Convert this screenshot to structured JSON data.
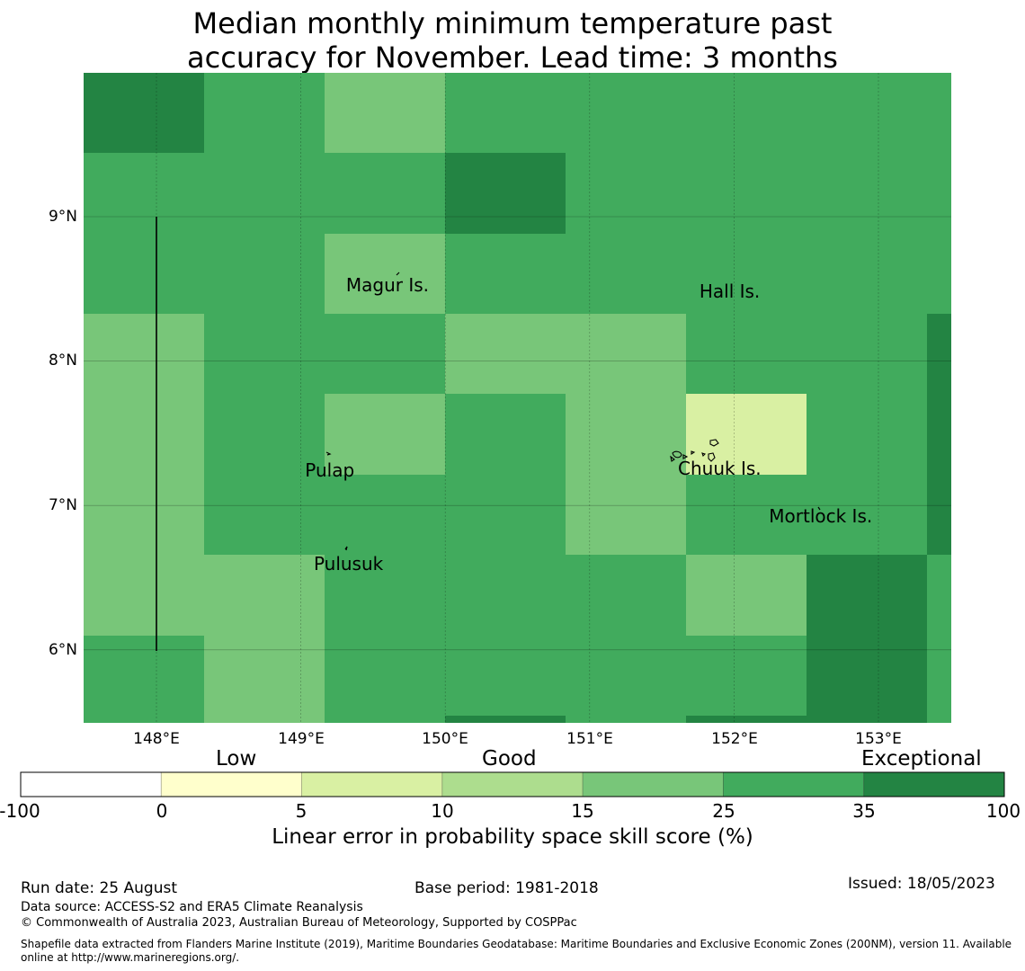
{
  "title_line1": "Median monthly minimum temperature past",
  "title_line2": "accuracy for November. Lead time: 3 months",
  "map": {
    "lon_range": [
      147.5,
      153.5
    ],
    "lat_range": [
      5.5,
      10.0
    ],
    "x_ticks": [
      "148°E",
      "149°E",
      "150°E",
      "151°E",
      "152°E",
      "153°E"
    ],
    "y_ticks": [
      "9°N",
      "8°N",
      "7°N",
      "6°N"
    ],
    "colors": {
      "c5": "#d9f0a3",
      "c15": "#78c679",
      "c25": "#41ab5d",
      "c35": "#238443"
    },
    "grid_rows": [
      [
        "c35",
        "c25",
        "c15",
        "c25",
        "c25",
        "c25",
        "c25",
        "c25"
      ],
      [
        "c25",
        "c25",
        "c25",
        "c35",
        "c25",
        "c25",
        "c25",
        "c25"
      ],
      [
        "c25",
        "c25",
        "c15",
        "c25",
        "c25",
        "c25",
        "c25",
        "c25"
      ],
      [
        "c15",
        "c25",
        "c25",
        "c15",
        "c15",
        "c25",
        "c25",
        "c35"
      ],
      [
        "c15",
        "c25",
        "c15",
        "c25",
        "c15",
        "c5",
        "c25",
        "c35"
      ],
      [
        "c15",
        "c25",
        "c25",
        "c25",
        "c15",
        "c25",
        "c25",
        "c35"
      ],
      [
        "c15",
        "c15",
        "c25",
        "c25",
        "c25",
        "c15",
        "c35",
        "c25"
      ],
      [
        "c25",
        "c15",
        "c25",
        "c25",
        "c25",
        "c25",
        "c35",
        "c25"
      ]
    ],
    "places": [
      {
        "name": "Magur Is.",
        "lon": 149.6,
        "lat": 8.52
      },
      {
        "name": "Hall Is.",
        "lon": 151.97,
        "lat": 8.48
      },
      {
        "name": "Pulap",
        "lon": 149.2,
        "lat": 7.24
      },
      {
        "name": "Chuuk Is.",
        "lon": 151.9,
        "lat": 7.25
      },
      {
        "name": "Mortlock Is.",
        "lon": 152.6,
        "lat": 6.92
      },
      {
        "name": "Pulusuk",
        "lon": 149.33,
        "lat": 6.59
      }
    ]
  },
  "legend": {
    "categories": [
      "Low",
      "Good",
      "Exceptional"
    ],
    "ticks": [
      "-100",
      "0",
      "5",
      "10",
      "15",
      "25",
      "35",
      "100"
    ],
    "colors": [
      "#ffffff",
      "#ffffcc",
      "#d9f0a3",
      "#addd8e",
      "#78c679",
      "#41ab5d",
      "#238443"
    ],
    "title": "Linear error in probability space skill score (%)"
  },
  "footer": {
    "run_date": "Run date: 25 August",
    "base_period": "Base period: 1981-2018",
    "issued": "Issued: 18/05/2023",
    "data_source": "Data source: ACCESS-S2 and ERA5 Climate Reanalysis",
    "copyright": "© Commonwealth of Australia 2023, Australian Bureau of Meteorology, Supported by COSPPac",
    "shapefile_line1": "Shapefile data extracted from Flanders Marine Institute (2019), Maritime Boundaries Geodatabase: Maritime Boundaries and Exclusive Economic Zones (200NM), version 11. Available",
    "shapefile_line2": "online at http://www.marineregions.org/."
  }
}
